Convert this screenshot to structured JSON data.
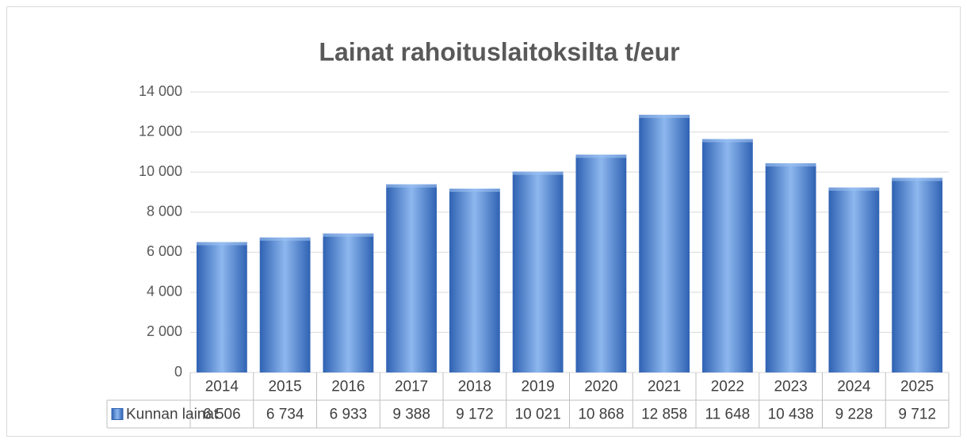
{
  "chart_data": {
    "type": "bar",
    "title": "Lainat rahoituslaitoksilta t/eur",
    "categories": [
      "2014",
      "2015",
      "2016",
      "2017",
      "2018",
      "2019",
      "2020",
      "2021",
      "2022",
      "2023",
      "2024",
      "2025"
    ],
    "series": [
      {
        "name": "Kunnan lainat",
        "color": "#4a7fd0",
        "values": [
          6506,
          6734,
          6933,
          9388,
          9172,
          10021,
          10868,
          12858,
          11648,
          10438,
          9228,
          9712
        ],
        "value_labels": [
          "6 506",
          "6 734",
          "6 933",
          "9 388",
          "9 172",
          "10 021",
          "10 868",
          "12 858",
          "11 648",
          "10 438",
          "9 228",
          "9 712"
        ]
      }
    ],
    "ylim": [
      0,
      14000
    ],
    "yticks": [
      0,
      {
        "value": 2000,
        "label": "2 000"
      },
      {
        "value": 4000,
        "label": "4 000"
      },
      {
        "value": 6000,
        "label": "6 000"
      },
      {
        "value": 8000,
        "label": "8 000"
      },
      {
        "value": 10000,
        "label": "10 000"
      },
      {
        "value": 12000,
        "label": "12 000"
      },
      {
        "value": 14000,
        "label": "14 000"
      }
    ],
    "grid": true
  }
}
